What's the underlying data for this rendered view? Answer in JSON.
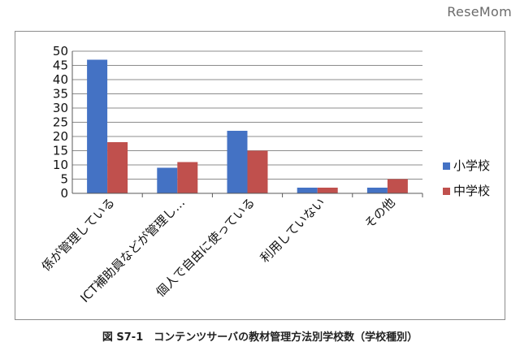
{
  "watermark": "ReseMom",
  "caption": "図 S7-1　コンテンツサーバの教材管理方法別学校数（学校種別）",
  "colors": {
    "elementary": "#4472c4",
    "junior": "#c0504d",
    "grid": "#8c8c8c",
    "axis": "#595959"
  },
  "chart_data": {
    "type": "bar",
    "title": "",
    "xlabel": "",
    "ylabel": "",
    "categories": [
      "係が管理している",
      "ICT補助員などが管理し…",
      "個人で自由に使っている",
      "利用していない",
      "その他"
    ],
    "series": [
      {
        "name": "小学校",
        "values": [
          47,
          9,
          22,
          2,
          2
        ]
      },
      {
        "name": "中学校",
        "values": [
          18,
          11,
          15,
          2,
          5
        ]
      }
    ],
    "ylim": [
      0,
      50
    ],
    "yticks": [
      0,
      5,
      10,
      15,
      20,
      25,
      30,
      35,
      40,
      45,
      50
    ],
    "grid": true,
    "legend": "right"
  }
}
